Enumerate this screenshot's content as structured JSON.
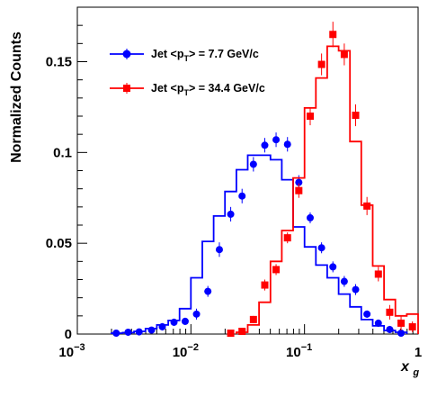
{
  "chart_data": {
    "type": "scatter",
    "title": "",
    "ylabel": "Normalized Counts",
    "xlabel_main": "x",
    "xlabel_sub": "g",
    "x_scale": "log",
    "xlim": [
      0.001,
      1
    ],
    "ylim": [
      0,
      0.18
    ],
    "x_tick_labels": [
      {
        "value": 0.001,
        "base": "10",
        "exp": "−3"
      },
      {
        "value": 0.01,
        "base": "10",
        "exp": "−2"
      },
      {
        "value": 0.1,
        "base": "10",
        "exp": "−1"
      },
      {
        "value": 1,
        "base": "1",
        "exp": ""
      }
    ],
    "y_ticks": [
      0,
      0.05,
      0.1,
      0.15
    ],
    "y_tick_labels": [
      "0",
      "0.05",
      "0.1",
      "0.15"
    ],
    "grid": false,
    "legend_placement": "top-left",
    "series": [
      {
        "name": "Jet <p_T> = 7.7 GeV/c",
        "legend_prefix": "Jet <p",
        "legend_sub": "T",
        "legend_suffix": "> = 7.7 GeV/c",
        "color": "#0000ff",
        "marker": "circle",
        "points": [
          {
            "x": 0.0022,
            "y": 0.0005,
            "err": 0.001
          },
          {
            "x": 0.0028,
            "y": 0.001,
            "err": 0.001
          },
          {
            "x": 0.0035,
            "y": 0.0012,
            "err": 0.001
          },
          {
            "x": 0.0045,
            "y": 0.0022,
            "err": 0.0015
          },
          {
            "x": 0.0056,
            "y": 0.004,
            "err": 0.002
          },
          {
            "x": 0.0071,
            "y": 0.0065,
            "err": 0.002
          },
          {
            "x": 0.0089,
            "y": 0.007,
            "err": 0.002
          },
          {
            "x": 0.0112,
            "y": 0.011,
            "err": 0.003
          },
          {
            "x": 0.0141,
            "y": 0.0235,
            "err": 0.003
          },
          {
            "x": 0.0178,
            "y": 0.0465,
            "err": 0.004
          },
          {
            "x": 0.0224,
            "y": 0.066,
            "err": 0.004
          },
          {
            "x": 0.0282,
            "y": 0.076,
            "err": 0.004
          },
          {
            "x": 0.0355,
            "y": 0.0935,
            "err": 0.004
          },
          {
            "x": 0.0447,
            "y": 0.104,
            "err": 0.004
          },
          {
            "x": 0.0562,
            "y": 0.107,
            "err": 0.004
          },
          {
            "x": 0.0708,
            "y": 0.1045,
            "err": 0.004
          },
          {
            "x": 0.0891,
            "y": 0.0835,
            "err": 0.004
          },
          {
            "x": 0.1122,
            "y": 0.064,
            "err": 0.003
          },
          {
            "x": 0.1413,
            "y": 0.0475,
            "err": 0.003
          },
          {
            "x": 0.1778,
            "y": 0.037,
            "err": 0.003
          },
          {
            "x": 0.2239,
            "y": 0.029,
            "err": 0.003
          },
          {
            "x": 0.2818,
            "y": 0.0245,
            "err": 0.003
          },
          {
            "x": 0.3548,
            "y": 0.011,
            "err": 0.002
          },
          {
            "x": 0.4467,
            "y": 0.006,
            "err": 0.002
          },
          {
            "x": 0.5623,
            "y": 0.0025,
            "err": 0.002
          },
          {
            "x": 0.7079,
            "y": 0.0005,
            "err": 0.001
          }
        ],
        "histogram": {
          "edges": [
            0.002,
            0.0025,
            0.00316,
            0.00398,
            0.00501,
            0.00631,
            0.00794,
            0.01,
            0.01259,
            0.01585,
            0.01995,
            0.02512,
            0.03162,
            0.03981,
            0.05012,
            0.0631,
            0.07943,
            0.1,
            0.12589,
            0.15849,
            0.19953,
            0.25119,
            0.31623,
            0.39811,
            0.50119,
            0.63096,
            0.79433
          ],
          "values": [
            0.0005,
            0.0008,
            0.0015,
            0.003,
            0.005,
            0.0075,
            0.014,
            0.031,
            0.051,
            0.065,
            0.0785,
            0.0905,
            0.0985,
            0.0985,
            0.096,
            0.085,
            0.059,
            0.048,
            0.038,
            0.031,
            0.022,
            0.015,
            0.008,
            0.0045,
            0.002,
            0.001
          ]
        }
      },
      {
        "name": "Jet <p_T> = 34.4 GeV/c",
        "legend_prefix": "Jet <p",
        "legend_sub": "T",
        "legend_suffix": "> = 34.4 GeV/c",
        "color": "#ff0000",
        "marker": "square",
        "points": [
          {
            "x": 0.0224,
            "y": 0.0005,
            "err": 0.001
          },
          {
            "x": 0.0282,
            "y": 0.0015,
            "err": 0.001
          },
          {
            "x": 0.0355,
            "y": 0.008,
            "err": 0.002
          },
          {
            "x": 0.0447,
            "y": 0.027,
            "err": 0.003
          },
          {
            "x": 0.0562,
            "y": 0.0355,
            "err": 0.003
          },
          {
            "x": 0.0708,
            "y": 0.053,
            "err": 0.003
          },
          {
            "x": 0.0891,
            "y": 0.079,
            "err": 0.004
          },
          {
            "x": 0.1122,
            "y": 0.12,
            "err": 0.005
          },
          {
            "x": 0.1413,
            "y": 0.1485,
            "err": 0.006
          },
          {
            "x": 0.1778,
            "y": 0.165,
            "err": 0.007
          },
          {
            "x": 0.2239,
            "y": 0.154,
            "err": 0.006
          },
          {
            "x": 0.2818,
            "y": 0.1205,
            "err": 0.006
          },
          {
            "x": 0.3548,
            "y": 0.0705,
            "err": 0.005
          },
          {
            "x": 0.4467,
            "y": 0.033,
            "err": 0.004
          },
          {
            "x": 0.5623,
            "y": 0.012,
            "err": 0.004
          },
          {
            "x": 0.7079,
            "y": 0.006,
            "err": 0.004
          },
          {
            "x": 0.8913,
            "y": 0.004,
            "err": 0.003
          }
        ],
        "histogram": {
          "edges": [
            0.02512,
            0.03162,
            0.03981,
            0.05012,
            0.0631,
            0.07943,
            0.1,
            0.12589,
            0.15849,
            0.19953,
            0.25119,
            0.31623,
            0.39811,
            0.50119,
            0.63096,
            0.79433,
            1.0
          ],
          "values": [
            0.001,
            0.005,
            0.0175,
            0.04,
            0.057,
            0.086,
            0.1245,
            0.141,
            0.1585,
            0.156,
            0.106,
            0.071,
            0.0375,
            0.019,
            0.01,
            0.011
          ]
        }
      }
    ]
  }
}
